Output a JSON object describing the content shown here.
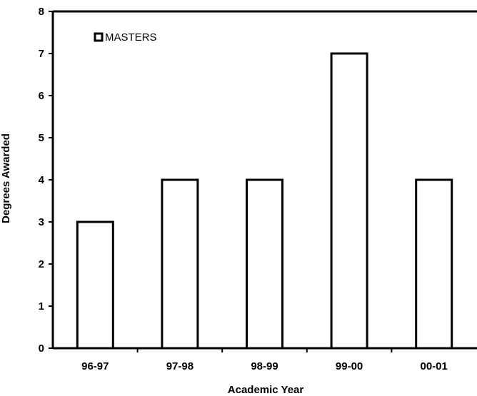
{
  "chart_data": {
    "type": "bar",
    "title": "",
    "xlabel": "Academic Year",
    "ylabel": "Degrees Awarded",
    "categories": [
      "96-97",
      "97-98",
      "98-99",
      "99-00",
      "00-01"
    ],
    "series": [
      {
        "name": "MASTERS",
        "values": [
          3,
          4,
          4,
          7,
          4
        ]
      }
    ],
    "ylim": [
      0,
      8
    ],
    "yticks": [
      "0",
      "1",
      "2",
      "3",
      "4",
      "5",
      "6",
      "7",
      "8"
    ],
    "grid": false,
    "legend_position": "top-left",
    "colors": {
      "bar_fill": "#ffffff",
      "bar_stroke": "#000000",
      "axis": "#000000"
    }
  }
}
